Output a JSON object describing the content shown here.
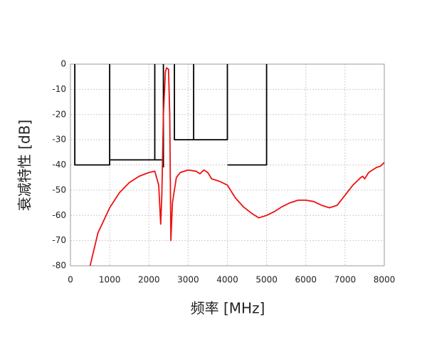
{
  "chart_data": {
    "type": "line",
    "x_label": "频率 [MHz]",
    "y_label": "衰减特性 [dB]",
    "xlim": [
      0,
      8000
    ],
    "ylim": [
      -80,
      0
    ],
    "xticks": [
      0,
      1000,
      2000,
      3000,
      4000,
      5000,
      6000,
      7000,
      8000
    ],
    "yticks": [
      0,
      -10,
      -20,
      -30,
      -40,
      -50,
      -60,
      -70,
      -80
    ],
    "grid": true,
    "series": [
      {
        "color": "#000000",
        "x": [
          110,
          110,
          1000,
          1000,
          null,
          1000,
          2150,
          2150,
          null,
          2150,
          2370,
          null,
          2370,
          2370,
          null,
          2650,
          2650,
          4000,
          4000,
          null,
          3140,
          3140,
          null,
          4000,
          5000,
          5000
        ],
        "values": [
          0,
          -40,
          -40,
          0,
          null,
          -38,
          -38,
          0,
          null,
          -38,
          -38,
          null,
          0,
          -41,
          null,
          0,
          -30,
          -30,
          0,
          null,
          0,
          -30,
          null,
          -40,
          -40,
          0
        ]
      },
      {
        "color": "#ee1111",
        "x": [
          500,
          700,
          1000,
          1250,
          1500,
          1750,
          2000,
          2150,
          2250,
          2300,
          2330,
          2370,
          2400,
          2420,
          2450,
          2500,
          2530,
          2560,
          2600,
          2700,
          2800,
          3000,
          3200,
          3300,
          3400,
          3500,
          3600,
          3800,
          4000,
          4200,
          4400,
          4600,
          4800,
          5000,
          5200,
          5400,
          5600,
          5800,
          6000,
          6200,
          6400,
          6600,
          6800,
          7000,
          7200,
          7400,
          7450,
          7500,
          7600,
          7800,
          7900,
          8000
        ],
        "values": [
          -80,
          -67,
          -57,
          -51,
          -47,
          -44.5,
          -43,
          -42.5,
          -48,
          -63.5,
          -52,
          -20,
          -10,
          -3,
          -1.5,
          -2,
          -20,
          -70,
          -55,
          -45,
          -43,
          -42,
          -42.5,
          -43.5,
          -42,
          -43,
          -45.5,
          -46.5,
          -48,
          -53,
          -56.5,
          -59,
          -61,
          -60,
          -58.5,
          -56.5,
          -55,
          -54,
          -54,
          -54.5,
          -56,
          -57,
          -56,
          -52,
          -48,
          -45,
          -44.5,
          -45.5,
          -43,
          -41,
          -40.5,
          -39
        ]
      }
    ]
  }
}
